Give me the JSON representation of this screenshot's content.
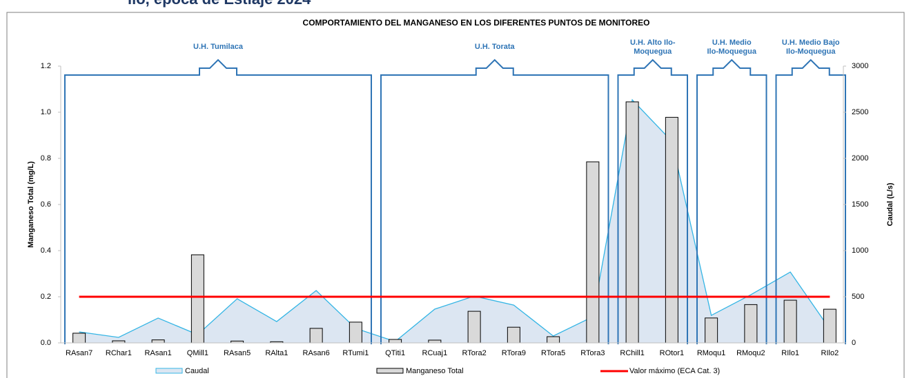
{
  "heading": "ilo, época de Estiaje 2024",
  "chart_data": {
    "type": "bar",
    "title": "COMPORTAMIENTO DEL MANGANESO EN LOS DIFERENTES PUNTOS DE MONITOREO",
    "ylabel": "Manganeso Total (mg/L)",
    "y2label": "Caudal (L/s)",
    "categories": [
      "RAsan7",
      "RChar1",
      "RAsan1",
      "QMill1",
      "RAsan5",
      "RAlta1",
      "RAsan6",
      "RTumi1",
      "QTiti1",
      "RCuaj1",
      "RTora2",
      "RTora9",
      "RTora5",
      "RTora3",
      "RChill1",
      "ROtor1",
      "RMoqu1",
      "RMoqu2",
      "RIlo1",
      "RIlo2"
    ],
    "series": [
      {
        "name": "Caudal",
        "type": "area",
        "axis": "y2",
        "color": "#33b5e5",
        "fill": "#dce6f2",
        "values": [
          119,
          60,
          269,
          90,
          478,
          231,
          567,
          157,
          15,
          366,
          507,
          410,
          75,
          283,
          2634,
          2186,
          298,
          522,
          768,
          149
        ]
      },
      {
        "name": "Manganeso Total",
        "type": "bar",
        "color": "#d9d9d9",
        "values": [
          0.042,
          0.009,
          0.013,
          0.382,
          0.008,
          0.005,
          0.063,
          0.09,
          0.015,
          0.012,
          0.137,
          0.068,
          0.027,
          0.785,
          1.045,
          0.978,
          0.108,
          0.166,
          0.185,
          0.146
        ]
      }
    ],
    "threshold": {
      "name": "Valor máximo (ECA Cat. 3)",
      "value": 0.2,
      "color": "#ff0000"
    },
    "groups": [
      {
        "label": [
          "U.H. Tumilaca"
        ]
      },
      {
        "label": [
          "U.H. Torata"
        ]
      },
      {
        "label": [
          "U.H. Alto Ilo-",
          "Moquegua"
        ]
      },
      {
        "label": [
          "U.H. Medio",
          "Ilo-Moquegua"
        ]
      },
      {
        "label": [
          "U.H. Medio Bajo",
          "Ilo-Moquegua"
        ]
      }
    ],
    "ylim": [
      0,
      1.2
    ],
    "yticks": [
      {
        "value": 0,
        "label": "0.0"
      },
      0.2,
      0.4,
      0.6,
      0.8,
      {
        "value": 1,
        "label": "1.0"
      },
      1.2
    ],
    "y2lim": [
      0,
      3000
    ],
    "y2ticks": [
      0,
      500,
      1000,
      1500,
      2000,
      2500,
      3000
    ]
  }
}
